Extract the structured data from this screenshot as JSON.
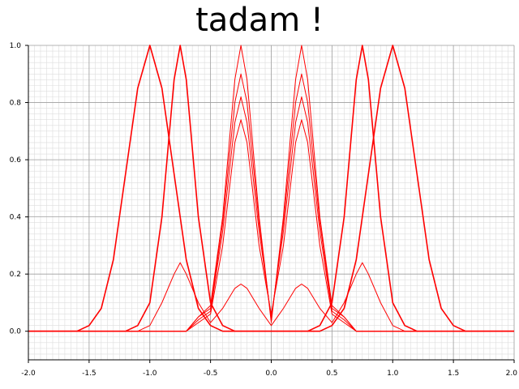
{
  "chart_data": {
    "type": "line",
    "title": "tadam !",
    "xlabel": "",
    "ylabel": "",
    "xlim": [
      -2.0,
      2.0
    ],
    "ylim": [
      -0.1,
      1.0
    ],
    "x_ticks": [
      "-2.0",
      "-1.5",
      "-1.0",
      "-0.5",
      "0.0",
      "0.5",
      "1.0",
      "1.5",
      "2.0"
    ],
    "y_ticks": [
      "0.0",
      "0.2",
      "0.4",
      "0.6",
      "0.8",
      "1.0"
    ],
    "grid": true,
    "minor_grid": true,
    "line_color": "#ff0000",
    "series": [
      {
        "x": [
          -2.0,
          -1.6,
          -1.5,
          -1.4,
          -1.3,
          -1.2,
          -1.1,
          -1.0,
          -0.9,
          -0.8,
          -0.7,
          -0.6,
          -0.5,
          -0.4,
          -0.3,
          -0.2,
          -0.1,
          0.0,
          0.1,
          0.2,
          0.3,
          0.4,
          0.5,
          0.6,
          0.7,
          0.8,
          0.9,
          1.0,
          1.1,
          1.2,
          1.3,
          1.4,
          1.5,
          1.6,
          2.0
        ],
        "values": [
          0.0,
          0.0,
          0.02,
          0.08,
          0.25,
          0.55,
          0.85,
          1.0,
          0.85,
          0.55,
          0.25,
          0.08,
          0.02,
          0.0,
          0.0,
          0.0,
          0.0,
          0.0,
          0.0,
          0.0,
          0.0,
          0.0,
          0.02,
          0.08,
          0.25,
          0.55,
          0.85,
          1.0,
          0.85,
          0.55,
          0.25,
          0.08,
          0.02,
          0.0,
          0.0
        ]
      },
      {
        "x": [
          -2.0,
          -1.2,
          -1.1,
          -1.0,
          -0.9,
          -0.8,
          -0.75,
          -0.7,
          -0.6,
          -0.5,
          -0.4,
          -0.3,
          0.0,
          0.3,
          0.4,
          0.5,
          0.6,
          0.7,
          0.75,
          0.8,
          0.9,
          1.0,
          1.1,
          1.2,
          2.0
        ],
        "values": [
          0.0,
          0.0,
          0.02,
          0.1,
          0.4,
          0.88,
          1.0,
          0.88,
          0.4,
          0.1,
          0.02,
          0.0,
          0.0,
          0.0,
          0.02,
          0.1,
          0.4,
          0.88,
          1.0,
          0.88,
          0.4,
          0.1,
          0.02,
          0.0,
          0.0
        ]
      },
      {
        "x": [
          -2.0,
          -1.1,
          -1.0,
          -0.9,
          -0.8,
          -0.75,
          -0.7,
          -0.6,
          -0.5,
          -0.4,
          -0.3,
          -0.25,
          -0.2,
          -0.1,
          0.0,
          0.1,
          0.2,
          0.25,
          0.3,
          0.4,
          0.5,
          0.6,
          0.7,
          0.75,
          0.8,
          0.9,
          1.0,
          1.1,
          2.0
        ],
        "values": [
          0.0,
          0.0,
          0.02,
          0.1,
          0.2,
          0.24,
          0.2,
          0.1,
          0.03,
          0.08,
          0.15,
          0.165,
          0.15,
          0.08,
          0.02,
          0.08,
          0.15,
          0.165,
          0.15,
          0.08,
          0.03,
          0.1,
          0.2,
          0.24,
          0.2,
          0.1,
          0.02,
          0.0,
          0.0
        ]
      },
      {
        "x": [
          -2.0,
          -0.7,
          -0.6,
          -0.5,
          -0.4,
          -0.3,
          -0.25,
          -0.2,
          -0.1,
          0.0,
          0.1,
          0.2,
          0.25,
          0.3,
          0.4,
          0.5,
          0.6,
          0.7,
          2.0
        ],
        "values": [
          0.0,
          0.0,
          0.05,
          0.09,
          0.4,
          0.88,
          1.0,
          0.88,
          0.4,
          0.03,
          0.4,
          0.88,
          1.0,
          0.88,
          0.4,
          0.09,
          0.05,
          0.0,
          0.0
        ]
      },
      {
        "x": [
          -2.0,
          -0.7,
          -0.6,
          -0.5,
          -0.4,
          -0.3,
          -0.25,
          -0.2,
          -0.1,
          0.0,
          0.1,
          0.2,
          0.25,
          0.3,
          0.4,
          0.5,
          0.6,
          0.7,
          2.0
        ],
        "values": [
          0.0,
          0.0,
          0.05,
          0.08,
          0.38,
          0.8,
          0.9,
          0.8,
          0.38,
          0.04,
          0.38,
          0.8,
          0.9,
          0.8,
          0.38,
          0.08,
          0.05,
          0.0,
          0.0
        ]
      },
      {
        "x": [
          -2.0,
          -0.7,
          -0.6,
          -0.5,
          -0.4,
          -0.3,
          -0.25,
          -0.2,
          -0.1,
          0.0,
          0.1,
          0.2,
          0.25,
          0.3,
          0.4,
          0.5,
          0.6,
          0.7,
          2.0
        ],
        "values": [
          0.0,
          0.0,
          0.04,
          0.07,
          0.35,
          0.73,
          0.82,
          0.73,
          0.35,
          0.05,
          0.35,
          0.73,
          0.82,
          0.73,
          0.35,
          0.07,
          0.04,
          0.0,
          0.0
        ]
      },
      {
        "x": [
          -2.0,
          -0.7,
          -0.6,
          -0.5,
          -0.4,
          -0.3,
          -0.25,
          -0.2,
          -0.1,
          0.0,
          0.1,
          0.2,
          0.25,
          0.3,
          0.4,
          0.5,
          0.6,
          0.7,
          2.0
        ],
        "values": [
          0.0,
          0.0,
          0.03,
          0.06,
          0.3,
          0.66,
          0.74,
          0.66,
          0.3,
          0.06,
          0.3,
          0.66,
          0.74,
          0.66,
          0.3,
          0.06,
          0.03,
          0.0,
          0.0
        ]
      }
    ]
  }
}
